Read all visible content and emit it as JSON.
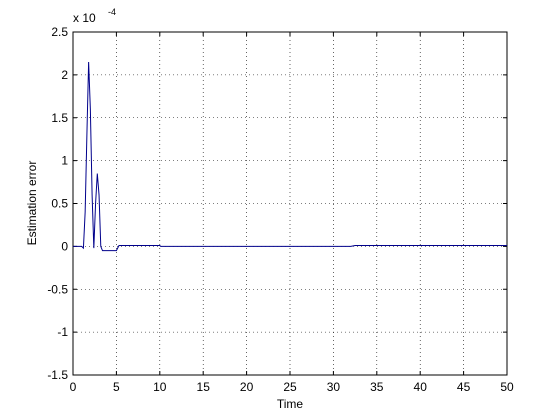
{
  "chart_data": {
    "type": "line",
    "xlabel": "Time",
    "ylabel": "Estimation error",
    "y_multiplier": "x 10",
    "y_multiplier_exponent": "-4",
    "x": [
      0,
      1,
      1.2,
      1.4,
      1.6,
      1.8,
      2.0,
      2.2,
      2.4,
      2.6,
      2.8,
      3.0,
      3.2,
      3.4,
      4,
      5,
      5.3,
      6,
      10,
      10.1,
      32,
      32.5,
      50
    ],
    "values": [
      0,
      0,
      -0.02,
      0.4,
      1.3,
      2.15,
      1.6,
      0.6,
      -0.02,
      0.5,
      0.85,
      0.6,
      0.0,
      -0.05,
      -0.05,
      -0.05,
      0.01,
      0.01,
      0.01,
      0,
      0,
      0.01,
      0.01
    ],
    "color": "#00008b",
    "xlim": [
      0,
      50
    ],
    "xticks": [
      0,
      5,
      10,
      15,
      20,
      25,
      30,
      35,
      40,
      45,
      50
    ],
    "ylim": [
      -1.5,
      2.5
    ],
    "yticks": [
      -1.5,
      -1,
      -0.5,
      0,
      0.5,
      1,
      1.5,
      2,
      2.5
    ],
    "grid": true
  }
}
